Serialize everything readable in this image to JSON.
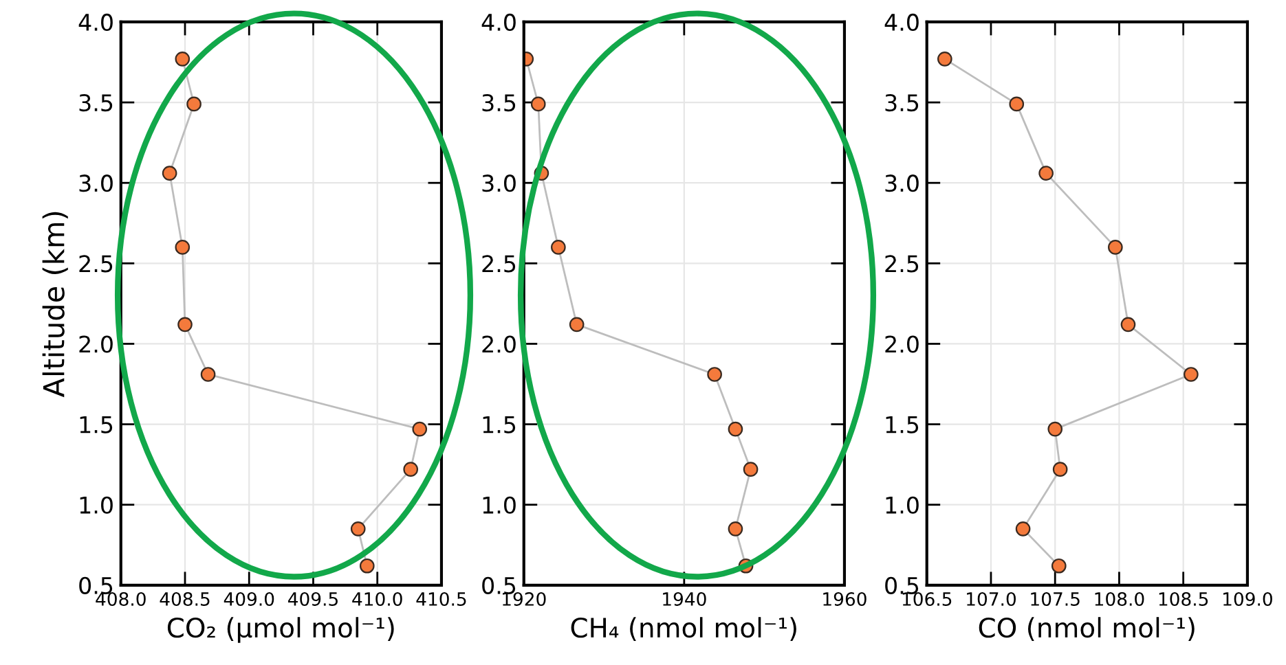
{
  "chart_data": [
    {
      "type": "line",
      "xlabel": "CO₂ (μmol mol⁻¹)",
      "ylabel": "Altitude (km)",
      "xlim": [
        408.0,
        410.5
      ],
      "xticks": [
        {
          "value": 408.0,
          "label": "408.0"
        },
        {
          "value": 408.5,
          "label": "408.5"
        },
        {
          "value": 409.0,
          "label": "409.0"
        },
        {
          "value": 409.5,
          "label": "409.5"
        },
        {
          "value": 410.0,
          "label": "410.0"
        },
        {
          "value": 410.5,
          "label": "410.5"
        }
      ],
      "ylim": [
        0.5,
        4.0
      ],
      "yticks": [
        {
          "value": 0.5,
          "label": "0.5"
        },
        {
          "value": 1.0,
          "label": "1.0"
        },
        {
          "value": 1.5,
          "label": "1.5"
        },
        {
          "value": 2.0,
          "label": "2.0"
        },
        {
          "value": 2.5,
          "label": "2.5"
        },
        {
          "value": 3.0,
          "label": "3.0"
        },
        {
          "value": 3.5,
          "label": "3.5"
        },
        {
          "value": 4.0,
          "label": "4.0"
        }
      ],
      "grid": true,
      "marker": "circle",
      "line_style": "solid",
      "series": [
        {
          "color": "#f47a3c",
          "x": [
            408.48,
            408.57,
            408.38,
            408.48,
            408.5,
            408.68,
            410.33,
            410.26,
            409.85,
            409.92
          ],
          "values": [
            3.77,
            3.49,
            3.06,
            2.6,
            2.12,
            1.81,
            1.47,
            1.22,
            0.85,
            0.62
          ]
        }
      ]
    },
    {
      "type": "line",
      "xlabel": "CH₄ (nmol mol⁻¹)",
      "xlim": [
        1920,
        1960
      ],
      "xticks": [
        1920,
        1940,
        1960
      ],
      "ylim": [
        0.5,
        4.0
      ],
      "yticks": [
        {
          "value": 0.5,
          "label": "0.5"
        },
        {
          "value": 1.0,
          "label": "1.0"
        },
        {
          "value": 1.5,
          "label": "1.5"
        },
        {
          "value": 2.0,
          "label": "2.0"
        },
        {
          "value": 2.5,
          "label": "2.5"
        },
        {
          "value": 3.0,
          "label": "3.0"
        },
        {
          "value": 3.5,
          "label": "3.5"
        },
        {
          "value": 4.0,
          "label": "4.0"
        }
      ],
      "grid": true,
      "marker": "circle",
      "line_style": "solid",
      "series": [
        {
          "color": "#f47a3c",
          "x": [
            1920.3,
            1921.8,
            1922.2,
            1924.3,
            1926.6,
            1943.8,
            1946.4,
            1948.3,
            1946.4,
            1947.7
          ],
          "values": [
            3.77,
            3.49,
            3.06,
            2.6,
            2.12,
            1.81,
            1.47,
            1.22,
            0.85,
            0.62
          ]
        }
      ]
    },
    {
      "type": "line",
      "xlabel": "CO (nmol mol⁻¹)",
      "xlim": [
        106.5,
        109.0
      ],
      "xticks": [
        {
          "value": 106.5,
          "label": "106.5"
        },
        {
          "value": 107.0,
          "label": "107.0"
        },
        {
          "value": 107.5,
          "label": "107.5"
        },
        {
          "value": 108.0,
          "label": "108.0"
        },
        {
          "value": 108.5,
          "label": "108.5"
        },
        {
          "value": 109.0,
          "label": "109.0"
        }
      ],
      "ylim": [
        0.5,
        4.0
      ],
      "yticks": [
        {
          "value": 0.5,
          "label": "0.5"
        },
        {
          "value": 1.0,
          "label": "1.0"
        },
        {
          "value": 1.5,
          "label": "1.5"
        },
        {
          "value": 2.0,
          "label": "2.0"
        },
        {
          "value": 2.5,
          "label": "2.5"
        },
        {
          "value": 3.0,
          "label": "3.0"
        },
        {
          "value": 3.5,
          "label": "3.5"
        },
        {
          "value": 4.0,
          "label": "4.0"
        }
      ],
      "grid": true,
      "marker": "circle",
      "line_style": "solid",
      "series": [
        {
          "color": "#f47a3c",
          "x": [
            106.64,
            107.2,
            107.43,
            107.97,
            108.07,
            108.56,
            107.5,
            107.54,
            107.25,
            107.53
          ],
          "values": [
            3.77,
            3.49,
            3.06,
            2.6,
            2.12,
            1.81,
            1.47,
            1.22,
            0.85,
            0.62
          ]
        }
      ]
    }
  ]
}
